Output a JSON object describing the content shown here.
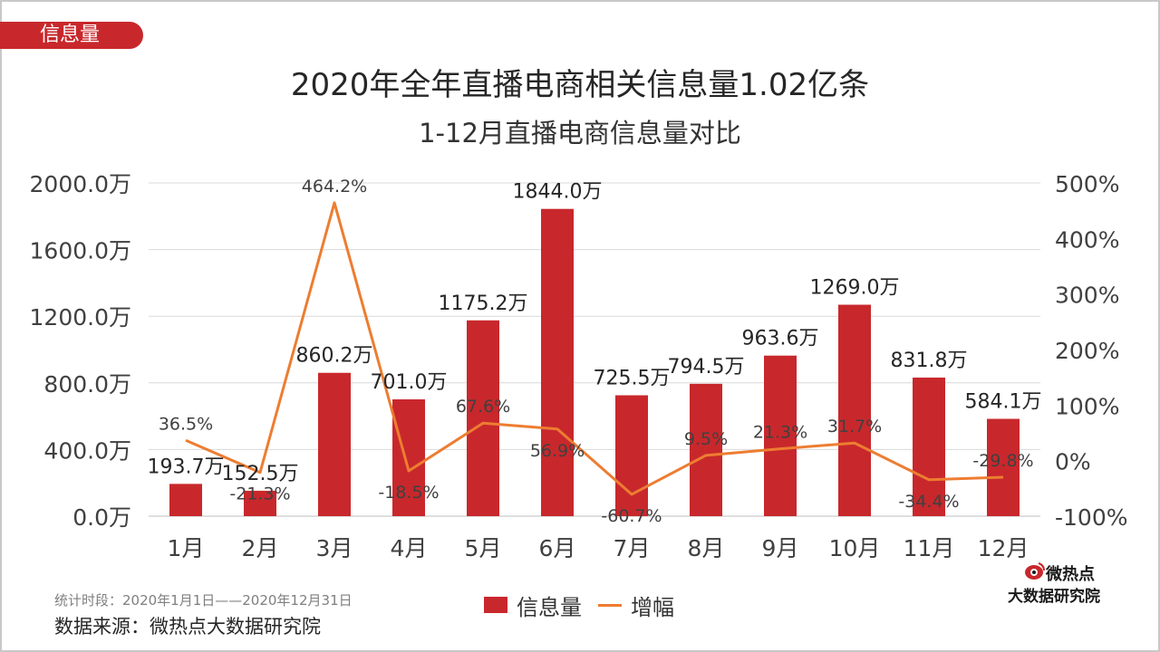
{
  "header": {
    "tag": "信息量",
    "title": "2020年全年直播电商相关信息量1.02亿条",
    "subtitle": "1-12月直播电商信息量对比"
  },
  "footer": {
    "period": "统计时段：2020年1月1日——2020年12月31日",
    "source": "数据来源：微热点大数据研究院"
  },
  "logo": {
    "name": "微热点",
    "org": "大数据研究院"
  },
  "colors": {
    "bar": "#c8282c",
    "line": "#ed7d31",
    "grid": "#d9d9d9",
    "text": "#404040"
  },
  "chart_data": {
    "type": "bar",
    "categories": [
      "1月",
      "2月",
      "3月",
      "4月",
      "5月",
      "6月",
      "7月",
      "8月",
      "9月",
      "10月",
      "11月",
      "12月"
    ],
    "series": [
      {
        "name": "信息量",
        "type": "bar",
        "axis": "left",
        "values": [
          193.7,
          152.5,
          860.2,
          701.0,
          1175.2,
          1844.0,
          725.5,
          794.5,
          963.6,
          1269.0,
          831.8,
          584.1
        ],
        "labels": [
          "193.7万",
          "152.5万",
          "860.2万",
          "701.0万",
          "1175.2万",
          "1844.0万",
          "725.5万",
          "794.5万",
          "963.6万",
          "1269.0万",
          "831.8万",
          "584.1万"
        ]
      },
      {
        "name": "增幅",
        "type": "line",
        "axis": "right",
        "values": [
          36.5,
          -21.3,
          464.2,
          -18.5,
          67.6,
          56.9,
          -60.7,
          9.5,
          21.3,
          31.7,
          -34.4,
          -29.8
        ],
        "labels": [
          "36.5%",
          "-21.3%",
          "464.2%",
          "-18.5%",
          "67.6%",
          "56.9%",
          "-60.7%",
          "9.5%",
          "21.3%",
          "31.7%",
          "-34.4%",
          "-29.8%"
        ]
      }
    ],
    "y_left": {
      "lim": [
        0,
        2000
      ],
      "ticks": [
        0,
        400,
        800,
        1200,
        1600,
        2000
      ],
      "tick_labels": [
        "0.0万",
        "400.0万",
        "800.0万",
        "1200.0万",
        "1600.0万",
        "2000.0万"
      ]
    },
    "y_right": {
      "lim": [
        -100,
        500
      ],
      "ticks": [
        -100,
        0,
        100,
        200,
        300,
        400,
        500
      ],
      "tick_labels": [
        "-100%",
        "0%",
        "100%",
        "200%",
        "300%",
        "400%",
        "500%"
      ]
    },
    "grid": true,
    "legend": "bottom-center"
  }
}
